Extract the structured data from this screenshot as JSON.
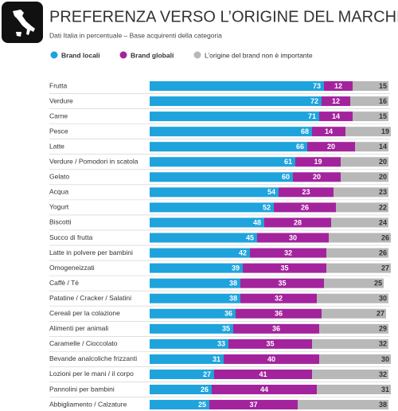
{
  "chart_data": {
    "type": "stacked-bar-horizontal",
    "title": "PREFERENZA VERSO L’ORIGINE DEL MARCHIO",
    "subtitle": "Dati Italia in percentuale – Base acquirenti della categoria",
    "categories": [
      "Frutta",
      "Verdure",
      "Carne",
      "Pesce",
      "Latte",
      "Verdure / Pomodori in scatola",
      "Gelato",
      "Acqua",
      "Yogurt",
      "Biscotti",
      "Succo di frutta",
      "Latte in polvere per bambini",
      "Omogeneizzati",
      "Caffè / Tè",
      "Patatine / Cracker / Salatini",
      "Cereali per la colazione",
      "Alimenti per animali",
      "Caramelle / Cioccolato",
      "Bevande analcoliche frizzanti",
      "Lozioni per le mani / il corpo",
      "Pannolini per bambini",
      "Abbigliamento / Calzature"
    ],
    "series": [
      {
        "name": "Brand locali",
        "color": "#1ea3dc",
        "values": [
          73,
          72,
          71,
          68,
          66,
          61,
          60,
          54,
          52,
          48,
          45,
          42,
          39,
          38,
          38,
          36,
          35,
          33,
          31,
          27,
          26,
          25
        ]
      },
      {
        "name": "Brand globali",
        "color": "#a3239d",
        "values": [
          12,
          12,
          14,
          14,
          20,
          19,
          20,
          23,
          26,
          28,
          30,
          32,
          35,
          35,
          32,
          36,
          36,
          35,
          40,
          41,
          44,
          37
        ]
      },
      {
        "name": "L’origine del brand non è importante",
        "color": "#b8b8b8",
        "values": [
          15,
          16,
          15,
          19,
          14,
          20,
          20,
          23,
          22,
          24,
          26,
          26,
          27,
          25,
          30,
          27,
          29,
          32,
          30,
          32,
          31,
          38
        ]
      }
    ]
  }
}
